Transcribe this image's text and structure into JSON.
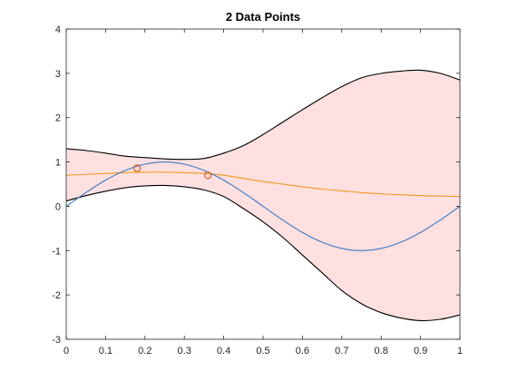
{
  "chart_data": {
    "type": "line",
    "title": "2 Data Points",
    "xlabel": "",
    "ylabel": "",
    "xlim": [
      0,
      1
    ],
    "ylim": [
      -3,
      4
    ],
    "x_ticks": [
      "0",
      "0.1",
      "0.2",
      "0.3",
      "0.4",
      "0.5",
      "0.6",
      "0.7",
      "0.8",
      "0.9",
      "1"
    ],
    "y_ticks": [
      "-3",
      "-2",
      "-1",
      "0",
      "1",
      "2",
      "3",
      "4"
    ],
    "grid": false,
    "legend": "none",
    "colors": {
      "band_fill": "#ffe0e0",
      "band_edge": "#000000",
      "true_function": "#3a78c3",
      "mean": "#ee9a1c",
      "points": "#d95319"
    },
    "x": [
      0,
      0.05,
      0.1,
      0.15,
      0.2,
      0.25,
      0.3,
      0.35,
      0.4,
      0.45,
      0.5,
      0.55,
      0.6,
      0.65,
      0.7,
      0.75,
      0.8,
      0.85,
      0.9,
      0.95,
      1
    ],
    "series": [
      {
        "role": "band-upper",
        "values": [
          1.3,
          1.26,
          1.2,
          1.13,
          1.1,
          1.07,
          1.06,
          1.08,
          1.2,
          1.37,
          1.62,
          1.9,
          2.18,
          2.45,
          2.7,
          2.9,
          3.0,
          3.05,
          3.07,
          3.0,
          2.85
        ]
      },
      {
        "role": "band-lower",
        "values": [
          0.12,
          0.24,
          0.34,
          0.42,
          0.46,
          0.47,
          0.44,
          0.37,
          0.22,
          -0.05,
          -0.35,
          -0.7,
          -1.1,
          -1.5,
          -1.9,
          -2.2,
          -2.4,
          -2.52,
          -2.58,
          -2.55,
          -2.45
        ]
      },
      {
        "role": "true-function",
        "values": [
          0.0,
          0.31,
          0.59,
          0.81,
          0.95,
          1.0,
          0.95,
          0.81,
          0.59,
          0.31,
          0.0,
          -0.31,
          -0.59,
          -0.81,
          -0.95,
          -1.0,
          -0.95,
          -0.81,
          -0.59,
          -0.31,
          0.0
        ]
      },
      {
        "role": "mean",
        "values": [
          0.7,
          0.72,
          0.74,
          0.76,
          0.77,
          0.77,
          0.76,
          0.74,
          0.7,
          0.63,
          0.56,
          0.5,
          0.44,
          0.39,
          0.35,
          0.31,
          0.28,
          0.26,
          0.24,
          0.23,
          0.22
        ]
      }
    ],
    "points": [
      {
        "x": 0.18,
        "y": 0.86
      },
      {
        "x": 0.36,
        "y": 0.7
      }
    ]
  }
}
